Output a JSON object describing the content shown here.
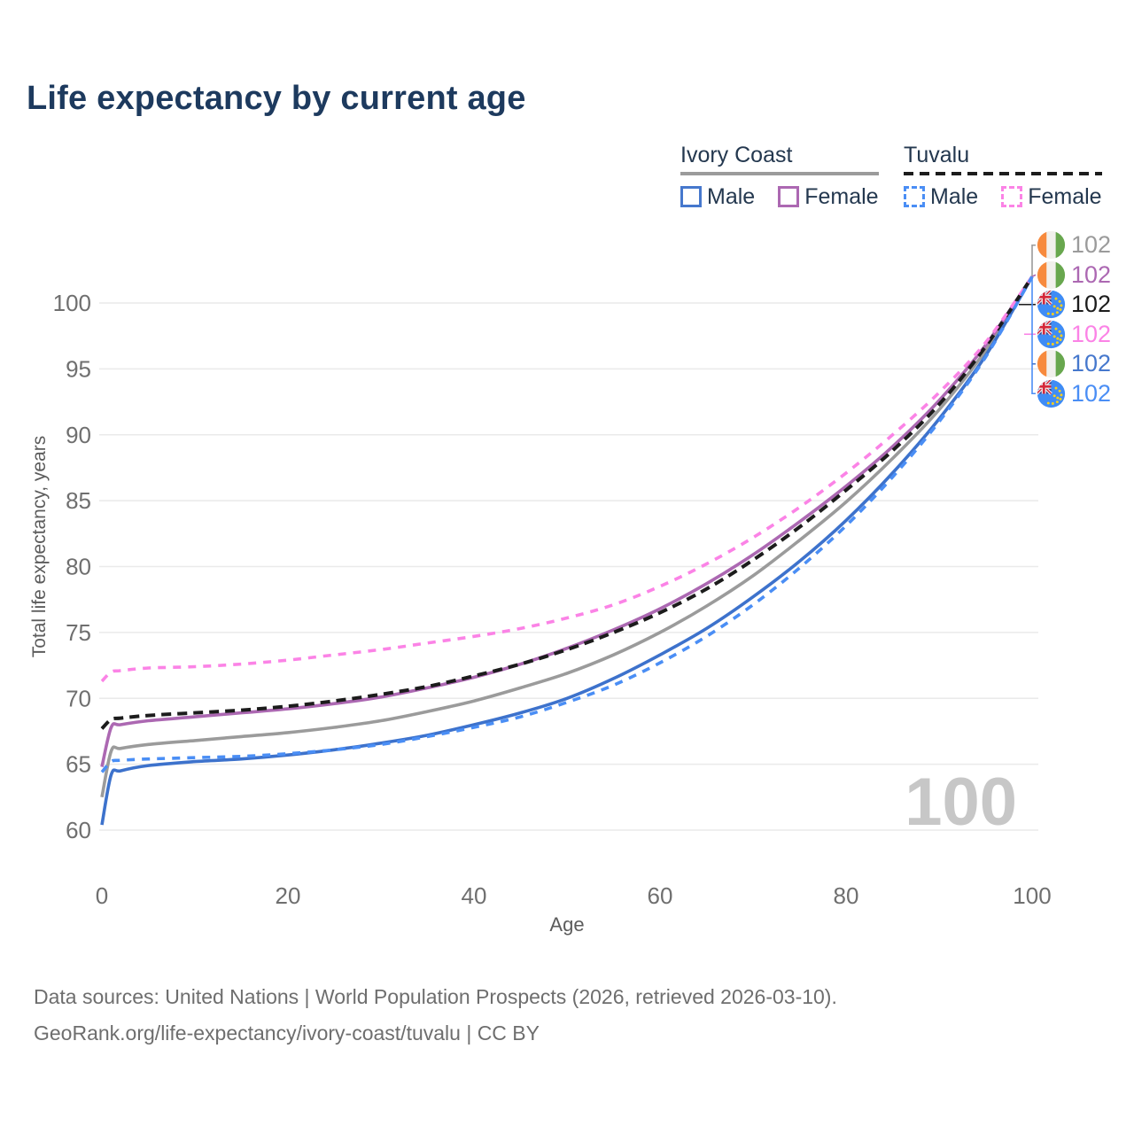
{
  "title": "Life expectancy by current age",
  "legend": {
    "groups": [
      {
        "title": "Ivory Coast",
        "underline_style": "solid",
        "underline_color": "#9b9b9b",
        "items": [
          {
            "label": "Male",
            "color": "#4678cd",
            "dashed": false
          },
          {
            "label": "Female",
            "color": "#ac68b2",
            "dashed": false
          }
        ]
      },
      {
        "title": "Tuvalu",
        "underline_style": "dashed",
        "underline_color": "#1c1c1c",
        "items": [
          {
            "label": "Male",
            "color": "#4a8ef5",
            "dashed": true
          },
          {
            "label": "Female",
            "color": "#fb83e6",
            "dashed": true
          }
        ]
      }
    ]
  },
  "watermark": "100",
  "end_labels": [
    {
      "flag": "ivory-coast",
      "value": "102",
      "color": "#9b9b9b"
    },
    {
      "flag": "ivory-coast",
      "value": "102",
      "color": "#ac68b2"
    },
    {
      "flag": "tuvalu",
      "value": "102",
      "color": "#1c1c1c"
    },
    {
      "flag": "tuvalu",
      "value": "102",
      "color": "#fb83e6"
    },
    {
      "flag": "ivory-coast",
      "value": "102",
      "color": "#4678cd"
    },
    {
      "flag": "tuvalu",
      "value": "102",
      "color": "#4a8ef5"
    }
  ],
  "footer": {
    "line1": "Data sources: United Nations | World Population Prospects (2026, retrieved 2026-03-10).",
    "line2": "GeoRank.org/life-expectancy/ivory-coast/tuvalu | CC BY"
  },
  "chart_data": {
    "type": "line",
    "title": "Life expectancy by current age",
    "xlabel": "Age",
    "ylabel": "Total life expectancy, years",
    "xlim": [
      0,
      100
    ],
    "ylim": [
      58.5,
      103.5
    ],
    "xticks": [
      0,
      20,
      40,
      60,
      80,
      100
    ],
    "yticks": [
      60,
      65,
      70,
      75,
      80,
      85,
      90,
      95,
      100
    ],
    "grid": "horizontal",
    "legend_position": "top-right",
    "x": [
      0,
      1,
      2,
      5,
      10,
      15,
      20,
      25,
      30,
      35,
      40,
      45,
      50,
      55,
      60,
      65,
      70,
      75,
      80,
      85,
      90,
      95,
      100
    ],
    "series": [
      {
        "name": "Ivory Coast (both sexes)",
        "color": "#9b9b9b",
        "dashed": false,
        "width": 3.6,
        "values": [
          62.5,
          66.0,
          66.2,
          66.5,
          66.8,
          67.1,
          67.4,
          67.8,
          68.3,
          69.0,
          69.8,
          70.8,
          71.9,
          73.3,
          75.0,
          77.0,
          79.3,
          82.0,
          84.9,
          88.2,
          91.9,
          96.4,
          102
        ]
      },
      {
        "name": "Ivory Coast Female",
        "color": "#ac68b2",
        "dashed": false,
        "width": 3.6,
        "values": [
          64.8,
          67.8,
          68.0,
          68.3,
          68.6,
          68.9,
          69.2,
          69.6,
          70.1,
          70.8,
          71.6,
          72.6,
          73.8,
          75.2,
          76.8,
          78.7,
          80.9,
          83.4,
          86.1,
          89.1,
          92.6,
          96.8,
          102
        ]
      },
      {
        "name": "Ivory Coast Male",
        "color": "#3d72cc",
        "dashed": false,
        "width": 3.6,
        "values": [
          60.4,
          64.2,
          64.5,
          64.9,
          65.2,
          65.4,
          65.7,
          66.1,
          66.6,
          67.2,
          68.0,
          68.9,
          70.0,
          71.5,
          73.3,
          75.3,
          77.7,
          80.4,
          83.5,
          87.1,
          91.2,
          96.0,
          102
        ]
      },
      {
        "name": "Tuvalu (both sexes)",
        "color": "#1c1c1c",
        "dashed": true,
        "width": 4,
        "values": [
          67.7,
          68.4,
          68.5,
          68.7,
          68.9,
          69.1,
          69.4,
          69.8,
          70.3,
          70.9,
          71.7,
          72.6,
          73.7,
          75.0,
          76.5,
          78.3,
          80.5,
          83.0,
          85.8,
          88.8,
          92.3,
          96.7,
          102
        ]
      },
      {
        "name": "Tuvalu Female",
        "color": "#fb83e6",
        "dashed": true,
        "width": 3.6,
        "values": [
          71.3,
          72.0,
          72.1,
          72.3,
          72.4,
          72.6,
          72.9,
          73.3,
          73.7,
          74.2,
          74.7,
          75.3,
          76.1,
          77.1,
          78.5,
          80.2,
          82.2,
          84.5,
          87.1,
          90.0,
          93.2,
          97.0,
          102
        ]
      },
      {
        "name": "Tuvalu Male",
        "color": "#4a8ef5",
        "dashed": true,
        "width": 3.6,
        "values": [
          64.4,
          65.2,
          65.3,
          65.4,
          65.5,
          65.6,
          65.8,
          66.1,
          66.5,
          67.1,
          67.8,
          68.6,
          69.7,
          71.0,
          72.7,
          74.7,
          77.1,
          79.9,
          83.1,
          86.8,
          91.0,
          95.9,
          102
        ]
      }
    ],
    "end_value_label": "102",
    "age_counter_watermark": "100"
  }
}
